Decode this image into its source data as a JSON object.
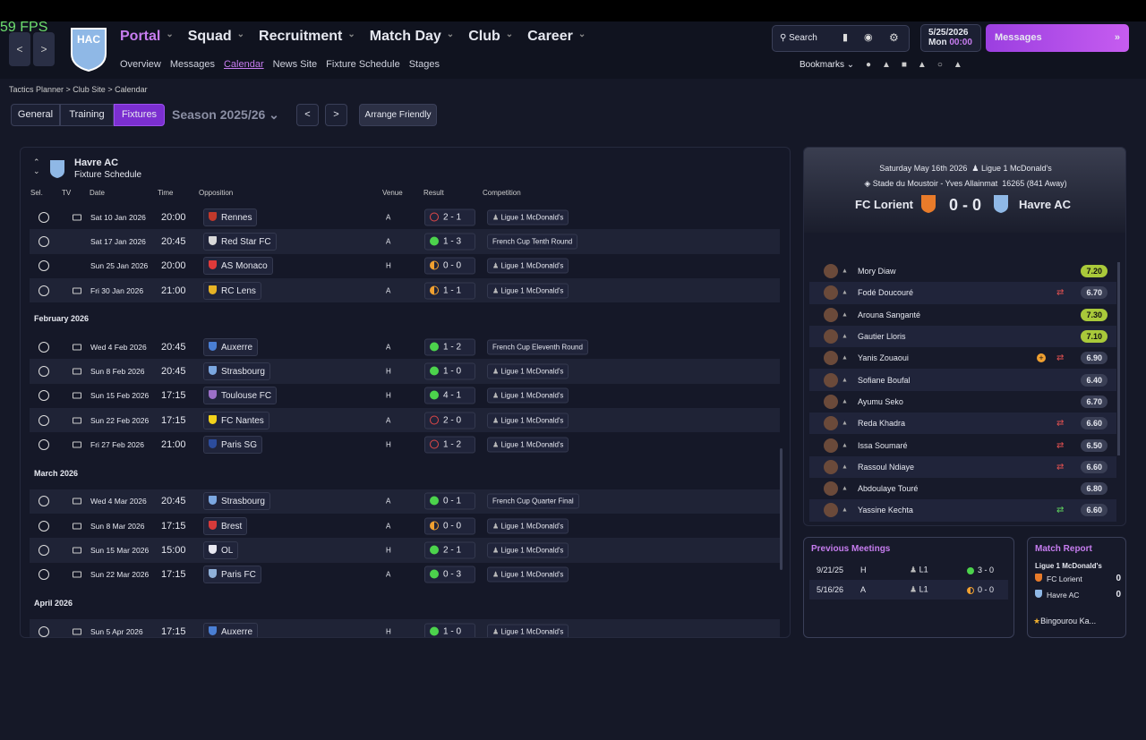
{
  "fps": "59 FPS",
  "club_badge": "HAC",
  "nav": {
    "main": [
      "Portal",
      "Squad",
      "Recruitment",
      "Match Day",
      "Club",
      "Career"
    ],
    "sub": [
      "Overview",
      "Messages",
      "Calendar",
      "News Site",
      "Fixture Schedule",
      "Stages"
    ],
    "active_main": 0,
    "active_sub": 2
  },
  "header": {
    "search": "Search",
    "date": "5/25/2026",
    "day": "Mon",
    "time": "00:00",
    "messages": "Messages",
    "bookmarks": "Bookmarks"
  },
  "breadcrumb": [
    "Tactics Planner",
    "Club Site",
    "Calendar"
  ],
  "tabs": [
    "General",
    "Training",
    "Fixtures"
  ],
  "active_tab": 2,
  "season": "Season 2025/26",
  "arrange": "Arrange Friendly",
  "schedule": {
    "club": "Havre AC",
    "subtitle": "Fixture Schedule",
    "columns": [
      "Sel.",
      "TV",
      "Date",
      "Time",
      "Opposition",
      "Venue",
      "Result",
      "Competition"
    ],
    "sections": [
      {
        "rows": [
          {
            "tv": true,
            "date": "Sat 10 Jan 2026",
            "time": "20:00",
            "opposition": "Rennes",
            "crest": "#c0392b",
            "venue": "A",
            "result": "2 - 1",
            "outcome": "loss",
            "competition": "Ligue 1 McDonald's"
          },
          {
            "tv": false,
            "date": "Sat 17 Jan 2026",
            "time": "20:45",
            "opposition": "Red Star FC",
            "crest": "#d9d9d9",
            "venue": "A",
            "result": "1 - 3",
            "outcome": "win",
            "competition": "French Cup Tenth Round"
          },
          {
            "tv": false,
            "date": "Sun 25 Jan 2026",
            "time": "20:00",
            "opposition": "AS Monaco",
            "crest": "#e03a3a",
            "venue": "H",
            "result": "0 - 0",
            "outcome": "draw",
            "competition": "Ligue 1 McDonald's"
          },
          {
            "tv": true,
            "date": "Fri 30 Jan 2026",
            "time": "21:00",
            "opposition": "RC Lens",
            "crest": "#e6b325",
            "venue": "A",
            "result": "1 - 1",
            "outcome": "draw",
            "competition": "Ligue 1 McDonald's"
          }
        ]
      },
      {
        "month": "February 2026",
        "rows": [
          {
            "tv": true,
            "date": "Wed 4 Feb 2026",
            "time": "20:45",
            "opposition": "Auxerre",
            "crest": "#4a7fd4",
            "venue": "A",
            "result": "1 - 2",
            "outcome": "win",
            "competition": "French Cup Eleventh Round"
          },
          {
            "tv": true,
            "date": "Sun 8 Feb 2026",
            "time": "20:45",
            "opposition": "Strasbourg",
            "crest": "#7ba7e0",
            "venue": "H",
            "result": "1 - 0",
            "outcome": "win",
            "competition": "Ligue 1 McDonald's"
          },
          {
            "tv": true,
            "date": "Sun 15 Feb 2026",
            "time": "17:15",
            "opposition": "Toulouse FC",
            "crest": "#9b6fc7",
            "venue": "H",
            "result": "4 - 1",
            "outcome": "win",
            "competition": "Ligue 1 McDonald's"
          },
          {
            "tv": true,
            "date": "Sun 22 Feb 2026",
            "time": "17:15",
            "opposition": "FC Nantes",
            "crest": "#f2d21b",
            "venue": "A",
            "result": "2 - 0",
            "outcome": "loss",
            "competition": "Ligue 1 McDonald's"
          },
          {
            "tv": true,
            "date": "Fri 27 Feb 2026",
            "time": "21:00",
            "opposition": "Paris SG",
            "crest": "#2c4c9c",
            "venue": "H",
            "result": "1 - 2",
            "outcome": "loss",
            "competition": "Ligue 1 McDonald's"
          }
        ]
      },
      {
        "month": "March 2026",
        "rows": [
          {
            "tv": true,
            "date": "Wed 4 Mar 2026",
            "time": "20:45",
            "opposition": "Strasbourg",
            "crest": "#7ba7e0",
            "venue": "A",
            "result": "0 - 1",
            "outcome": "win",
            "competition": "French Cup Quarter Final"
          },
          {
            "tv": true,
            "date": "Sun 8 Mar 2026",
            "time": "17:15",
            "opposition": "Brest",
            "crest": "#d63a3a",
            "venue": "A",
            "result": "0 - 0",
            "outcome": "draw",
            "competition": "Ligue 1 McDonald's"
          },
          {
            "tv": true,
            "date": "Sun 15 Mar 2026",
            "time": "15:00",
            "opposition": "OL",
            "crest": "#e8e8f0",
            "venue": "H",
            "result": "2 - 1",
            "outcome": "win",
            "competition": "Ligue 1 McDonald's"
          },
          {
            "tv": true,
            "date": "Sun 22 Mar 2026",
            "time": "17:15",
            "opposition": "Paris FC",
            "crest": "#8fb0d8",
            "venue": "A",
            "result": "0 - 3",
            "outcome": "win",
            "competition": "Ligue 1 McDonald's"
          }
        ]
      },
      {
        "month": "April 2026",
        "rows": [
          {
            "tv": true,
            "date": "Sun 5 Apr 2026",
            "time": "17:15",
            "opposition": "Auxerre",
            "crest": "#4a7fd4",
            "venue": "H",
            "result": "1 - 0",
            "outcome": "win",
            "competition": "Ligue 1 McDonald's"
          }
        ]
      }
    ]
  },
  "match": {
    "date": "Saturday May 16th 2026",
    "competition": "Ligue 1 McDonald's",
    "stadium": "Stade du Moustoir - Yves Allainmat",
    "attendance": "16265 (841 Away)",
    "home": "FC Lorient",
    "score": "0 - 0",
    "away": "Havre AC",
    "players": [
      {
        "name": "Mory Diaw",
        "rating": "7.20",
        "top": true
      },
      {
        "name": "Fodé Doucouré",
        "rating": "6.70",
        "sub": "off"
      },
      {
        "name": "Arouna Sanganté",
        "rating": "7.30",
        "top": true
      },
      {
        "name": "Gautier Lloris",
        "rating": "7.10",
        "top": true
      },
      {
        "name": "Yanis Zouaoui",
        "rating": "6.90",
        "sub": "off",
        "event": true
      },
      {
        "name": "Sofiane Boufal",
        "rating": "6.40"
      },
      {
        "name": "Ayumu Seko",
        "rating": "6.70"
      },
      {
        "name": "Reda Khadra",
        "rating": "6.60",
        "sub": "off"
      },
      {
        "name": "Issa Soumaré",
        "rating": "6.50",
        "sub": "off"
      },
      {
        "name": "Rassoul Ndiaye",
        "rating": "6.60",
        "sub": "off"
      },
      {
        "name": "Abdoulaye Touré",
        "rating": "6.80"
      },
      {
        "name": "Yassine Kechta",
        "rating": "6.60",
        "sub": "on"
      }
    ]
  },
  "previous": {
    "title": "Previous Meetings",
    "rows": [
      {
        "date": "9/21/25",
        "venue": "H",
        "competition": "L1",
        "result": "3 - 0",
        "outcome": "win"
      },
      {
        "date": "5/16/26",
        "venue": "A",
        "competition": "L1",
        "result": "0 - 0",
        "outcome": "draw"
      }
    ]
  },
  "report": {
    "title": "Match Report",
    "competition": "Ligue 1 McDonald's",
    "teams": [
      {
        "name": "FC Lorient",
        "goals": 0
      },
      {
        "name": "Havre AC",
        "goals": 0
      }
    ],
    "star": "Bingourou Ka..."
  }
}
